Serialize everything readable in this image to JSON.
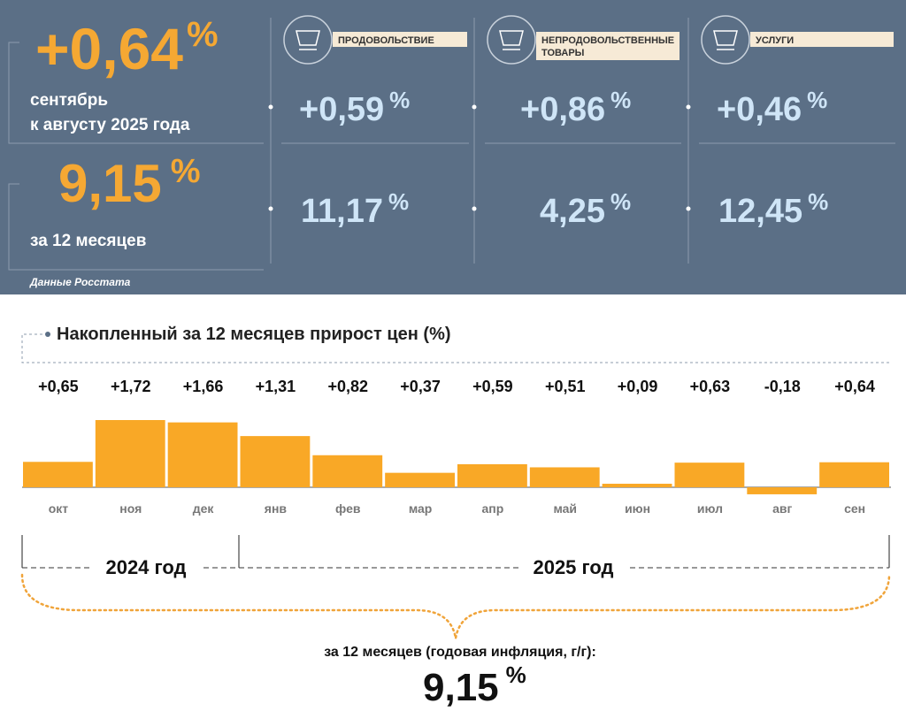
{
  "header": {
    "main": {
      "value": "+0,64",
      "unit": "%",
      "caption_line1": "сентябрь",
      "caption_line2": "к августу 2025 года"
    },
    "annual": {
      "value": "9,15",
      "unit": "%",
      "caption": "за 12 месяцев"
    },
    "source": "Данные Росстата"
  },
  "categories_panel": [
    {
      "label_line1": "ПРОДОВОЛЬСТВИЕ",
      "monthly": "+0,59",
      "monthly_unit": "%",
      "annual": "11,17",
      "annual_unit": "%"
    },
    {
      "label_line1": "НЕПРОДОВОЛЬСТВЕННЫЕ",
      "label_line2": "ТОВАРЫ",
      "monthly": "+0,86",
      "monthly_unit": "%",
      "annual": "4,25",
      "annual_unit": "%"
    },
    {
      "label_line1": "УСЛУГИ",
      "monthly": "+0,46",
      "monthly_unit": "%",
      "annual": "12,45",
      "annual_unit": "%"
    }
  ],
  "chart_data": {
    "type": "bar",
    "title": "Накопленный за 12 месяцев прирост цен (%)",
    "categories": [
      "окт",
      "ноя",
      "дек",
      "янв",
      "фев",
      "мар",
      "апр",
      "май",
      "июн",
      "июл",
      "авг",
      "сен"
    ],
    "values": [
      0.65,
      1.72,
      1.66,
      1.31,
      0.82,
      0.37,
      0.59,
      0.51,
      0.09,
      0.63,
      -0.18,
      0.64
    ],
    "value_labels": [
      "+0,65",
      "+1,72",
      "+1,66",
      "+1,31",
      "+0,82",
      "+0,37",
      "+0,59",
      "+0,51",
      "+0,09",
      "+0,63",
      "-0,18",
      "+0,64"
    ],
    "color": "#f9a826"
  },
  "period_labels": [
    "2024 год",
    "2025 год"
  ],
  "footer": {
    "caption": "за 12 месяцев (годовая инфляция, г/г):",
    "value": "9,15",
    "unit": "%"
  }
}
